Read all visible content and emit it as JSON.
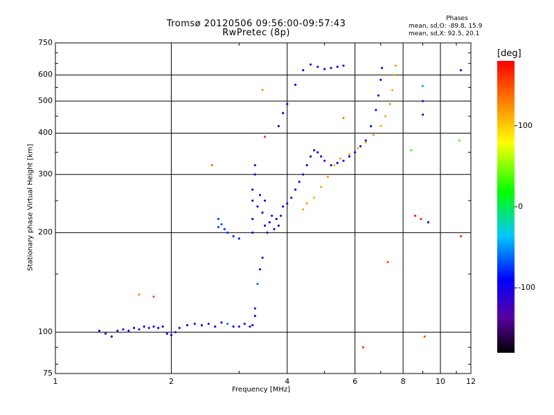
{
  "header": {
    "title_line1": "Tromsø 20120506 09:56:00-09:57:43",
    "title_line2": "RwPretec (8p)"
  },
  "phases": {
    "heading": "Phases",
    "line_o": "mean, sd,O: -89.8, 15.9",
    "line_x": "mean, sd,X: 92.5, 20.1"
  },
  "colorbar": {
    "unit": "[deg]",
    "ticks": [
      "100",
      "0",
      "-100"
    ],
    "tick_values": [
      100,
      0,
      -100
    ],
    "range": [
      -180,
      180
    ],
    "colormap": "rainbow-black-to-red"
  },
  "chart_data": {
    "type": "scatter",
    "xlabel": "Frequency [MHz]",
    "ylabel": "Stationary phase Virtual Height [km]",
    "xscale": "log",
    "yscale": "log",
    "xlim": [
      1,
      12
    ],
    "ylim": [
      75,
      750
    ],
    "x_ticks": [
      1,
      2,
      4,
      6,
      8,
      10,
      12
    ],
    "x_tick_labels": [
      "1",
      "2",
      "4",
      "6",
      "8",
      "10",
      "12"
    ],
    "y_ticks": [
      75,
      100,
      200,
      300,
      400,
      500,
      600,
      750
    ],
    "y_tick_labels": [
      "75",
      "100",
      "200",
      "300",
      "400",
      "500",
      "600",
      "750"
    ],
    "grid": true,
    "series": [
      {
        "points": [
          [
            1.3,
            101,
            -105
          ],
          [
            1.35,
            99,
            -105
          ],
          [
            1.4,
            97,
            -100
          ],
          [
            1.45,
            101,
            -110
          ],
          [
            1.5,
            102,
            -105
          ],
          [
            1.55,
            101,
            -100
          ],
          [
            1.6,
            103,
            -110
          ],
          [
            1.65,
            102,
            -105
          ],
          [
            1.7,
            104,
            -100
          ],
          [
            1.75,
            103,
            -105
          ],
          [
            1.8,
            104,
            -110
          ],
          [
            1.85,
            103,
            -100
          ],
          [
            1.9,
            104,
            -105
          ],
          [
            1.95,
            99,
            -95
          ],
          [
            2.0,
            98,
            -100
          ],
          [
            2.05,
            100,
            -105
          ],
          [
            2.1,
            103,
            -110
          ],
          [
            2.2,
            105,
            -105
          ],
          [
            2.3,
            106,
            -100
          ],
          [
            2.4,
            105,
            -110
          ],
          [
            2.5,
            106,
            -105
          ],
          [
            2.6,
            104,
            -100
          ],
          [
            2.7,
            107,
            -95
          ],
          [
            2.8,
            106,
            -60
          ],
          [
            2.9,
            104,
            -110
          ],
          [
            3.0,
            104,
            -105
          ],
          [
            3.1,
            106,
            -100
          ],
          [
            3.2,
            104,
            -110
          ],
          [
            3.25,
            105,
            -100
          ],
          [
            3.3,
            112,
            -105
          ],
          [
            3.3,
            118,
            -110
          ],
          [
            3.35,
            140,
            -60
          ],
          [
            3.4,
            155,
            -105
          ],
          [
            3.45,
            168,
            -110
          ],
          [
            2.65,
            220,
            -70
          ],
          [
            2.7,
            212,
            -70
          ],
          [
            2.75,
            205,
            -75
          ],
          [
            2.8,
            200,
            -80
          ],
          [
            2.9,
            195,
            -80
          ],
          [
            3.0,
            192,
            -85
          ],
          [
            2.65,
            208,
            -75
          ],
          [
            3.25,
            200,
            -100
          ],
          [
            3.25,
            220,
            -105
          ],
          [
            3.25,
            250,
            -110
          ],
          [
            3.25,
            270,
            -100
          ],
          [
            3.3,
            300,
            -105
          ],
          [
            3.3,
            320,
            -110
          ],
          [
            3.35,
            240,
            -100
          ],
          [
            3.4,
            260,
            -105
          ],
          [
            3.45,
            230,
            -110
          ],
          [
            3.5,
            210,
            -100
          ],
          [
            3.5,
            250,
            -105
          ],
          [
            3.55,
            200,
            -110
          ],
          [
            3.6,
            215,
            -100
          ],
          [
            3.65,
            225,
            -105
          ],
          [
            3.7,
            205,
            -110
          ],
          [
            3.75,
            220,
            -100
          ],
          [
            3.8,
            210,
            -105
          ],
          [
            3.85,
            225,
            -110
          ],
          [
            3.9,
            240,
            -100
          ],
          [
            4.0,
            245,
            -105
          ],
          [
            4.1,
            255,
            -110
          ],
          [
            4.2,
            270,
            -100
          ],
          [
            4.3,
            285,
            -105
          ],
          [
            4.4,
            300,
            -110
          ],
          [
            4.5,
            320,
            -100
          ],
          [
            4.6,
            340,
            -105
          ],
          [
            4.7,
            355,
            -110
          ],
          [
            4.8,
            350,
            -100
          ],
          [
            4.9,
            340,
            -105
          ],
          [
            5.0,
            330,
            -110
          ],
          [
            5.2,
            320,
            -100
          ],
          [
            5.4,
            325,
            -105
          ],
          [
            5.6,
            330,
            -110
          ],
          [
            5.8,
            340,
            -100
          ],
          [
            6.0,
            350,
            -105
          ],
          [
            6.2,
            365,
            -110
          ],
          [
            6.4,
            380,
            -100
          ],
          [
            6.6,
            420,
            -105
          ],
          [
            6.8,
            470,
            -110
          ],
          [
            6.9,
            520,
            -100
          ],
          [
            7.0,
            580,
            -105
          ],
          [
            7.05,
            630,
            -110
          ],
          [
            3.8,
            420,
            -100
          ],
          [
            3.9,
            460,
            -105
          ],
          [
            4.0,
            490,
            -110
          ],
          [
            4.2,
            560,
            -100
          ],
          [
            4.4,
            620,
            -105
          ],
          [
            4.6,
            645,
            -110
          ],
          [
            4.8,
            635,
            -100
          ],
          [
            5.0,
            625,
            -105
          ],
          [
            5.2,
            630,
            -110
          ],
          [
            5.4,
            635,
            -100
          ],
          [
            5.6,
            640,
            -105
          ],
          [
            4.4,
            235,
            115
          ],
          [
            4.5,
            245,
            120
          ],
          [
            4.7,
            255,
            110
          ],
          [
            4.9,
            275,
            115
          ],
          [
            5.1,
            295,
            120
          ],
          [
            5.3,
            320,
            110
          ],
          [
            5.5,
            335,
            115
          ],
          [
            5.8,
            345,
            120
          ],
          [
            6.1,
            360,
            110
          ],
          [
            6.4,
            375,
            115
          ],
          [
            6.7,
            395,
            120
          ],
          [
            7.0,
            420,
            110
          ],
          [
            7.2,
            450,
            115
          ],
          [
            7.4,
            490,
            120
          ],
          [
            7.5,
            540,
            110
          ],
          [
            7.6,
            600,
            115
          ],
          [
            7.65,
            640,
            120
          ],
          [
            1.65,
            130,
            125
          ],
          [
            1.8,
            128,
            150
          ],
          [
            2.55,
            320,
            140
          ],
          [
            3.45,
            540,
            120
          ],
          [
            3.5,
            390,
            160
          ],
          [
            5.6,
            445,
            130
          ],
          [
            6.3,
            90,
            160
          ],
          [
            7.3,
            163,
            150
          ],
          [
            8.6,
            225,
            170
          ],
          [
            8.9,
            220,
            165
          ],
          [
            9.3,
            215,
            -150
          ],
          [
            9.1,
            97,
            150
          ],
          [
            8.4,
            355,
            30
          ],
          [
            11.3,
            620,
            -110
          ],
          [
            11.2,
            380,
            40
          ],
          [
            11.3,
            195,
            160
          ],
          [
            9.0,
            555,
            -40
          ],
          [
            9.0,
            500,
            -110
          ],
          [
            9.0,
            455,
            -120
          ]
        ]
      }
    ]
  }
}
